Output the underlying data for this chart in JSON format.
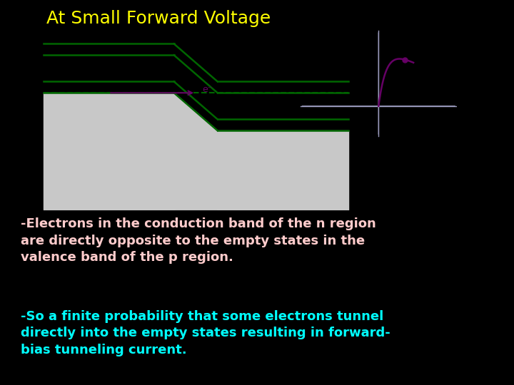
{
  "background_color": "#000000",
  "title": "At Small Forward Voltage",
  "title_color": "#ffff00",
  "title_fontsize": 18,
  "diagram_bg": "#ffffff",
  "text1": "-Electrons in the conduction band of the n region\nare directly opposite to the empty states in the\nvalence band of the p region.",
  "text1_color": "#ffcccc",
  "text1_fontsize": 13,
  "text2": "-So a finite probability that some electrons tunnel\ndirectly into the empty states resulting in forward-\nbias tunneling current.",
  "text2_color": "#00ffff",
  "text2_fontsize": 13,
  "band_color": "#006600",
  "band_fill": "#c8c8c8",
  "arrow_color": "#660066",
  "dashed_color": "#006600",
  "iv_color": "#660066",
  "iv_axis_color": "#9999bb"
}
